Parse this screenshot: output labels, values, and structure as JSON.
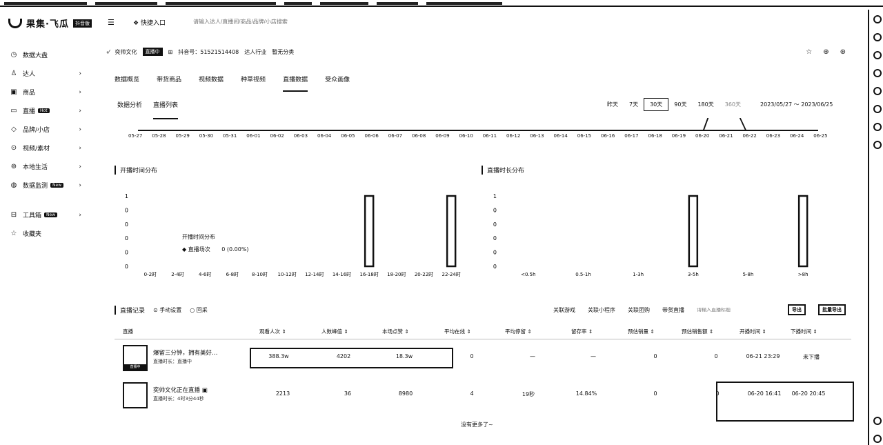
{
  "brand": {
    "name": "果集·飞瓜",
    "badge": "抖音版"
  },
  "header": {
    "quick_entry": "快捷入口",
    "search_placeholder": "请输入达人/直播间/商品/品牌/小店搜索"
  },
  "sidebar": {
    "items": [
      {
        "icon": "dashboard-icon",
        "label": "数据大盘"
      },
      {
        "icon": "user-icon",
        "label": "达人"
      },
      {
        "icon": "product-icon",
        "label": "商品"
      },
      {
        "icon": "tv-icon",
        "label": "直播",
        "tag": "Hot"
      },
      {
        "icon": "tag-icon",
        "label": "品牌/小店"
      },
      {
        "icon": "play-icon",
        "label": "视频/素材"
      },
      {
        "icon": "location-icon",
        "label": "本地生活"
      },
      {
        "icon": "monitor-icon",
        "label": "数据监测",
        "tag": "New"
      },
      {
        "icon": "toolbox-icon",
        "label": "工具箱",
        "tag": "New"
      },
      {
        "icon": "star-icon",
        "label": "收藏夹"
      }
    ]
  },
  "profile": {
    "name": "奕帅文化",
    "live_status": "直播中",
    "douyin_id": "抖音号：51521514408",
    "industry": "达人行业",
    "category": "暂无分类"
  },
  "tabs": [
    "数据概览",
    "带货商品",
    "视频数据",
    "种草视频",
    "直播数据",
    "受众画像"
  ],
  "active_tab": 4,
  "subtabs": [
    "数据分析",
    "直播列表"
  ],
  "active_subtab": 1,
  "date_ranges": [
    "昨天",
    "7天",
    "30天",
    "90天",
    "180天",
    "360天"
  ],
  "selected_range": 2,
  "date_span": "2023/05/27  ～ 2023/06/25",
  "timeline_labels": [
    "05-27",
    "05-28",
    "05-29",
    "05-30",
    "05-31",
    "06-01",
    "06-02",
    "06-03",
    "06-04",
    "06-05",
    "06-06",
    "06-07",
    "06-08",
    "06-09",
    "06-10",
    "06-11",
    "06-12",
    "06-13",
    "06-14",
    "06-15",
    "06-16",
    "06-17",
    "06-18",
    "06-19",
    "06-20",
    "06-21",
    "06-22",
    "06-23",
    "06-24",
    "06-25"
  ],
  "panels": {
    "start_time_title": "开播时间分布",
    "duration_title": "直播时长分布"
  },
  "tooltip": {
    "title": "开播时间分布",
    "series": "直播场次",
    "value": "0 (0.00%)"
  },
  "chart_data": [
    {
      "type": "bar",
      "categories": [
        "0-2时",
        "2-4时",
        "4-6时",
        "6-8时",
        "8-10时",
        "10-12时",
        "12-14时",
        "14-16时",
        "16-18时",
        "18-20时",
        "20-22时",
        "22-24时"
      ],
      "values": [
        0,
        0,
        0,
        0,
        0,
        0,
        0,
        0,
        1,
        0,
        0,
        1
      ],
      "y_tick_labels": [
        "1",
        "0",
        "0",
        "0",
        "0",
        "0"
      ],
      "ylim": [
        0,
        1
      ]
    },
    {
      "type": "bar",
      "categories": [
        "<0.5h",
        "0.5-1h",
        "1-3h",
        "3-5h",
        "5-8h",
        ">8h"
      ],
      "values": [
        0,
        0,
        0,
        1,
        0,
        1
      ],
      "y_tick_labels": [
        "1",
        "0",
        "0",
        "0",
        "0",
        "0"
      ],
      "ylim": [
        0,
        1
      ]
    }
  ],
  "records": {
    "title": "直播记录",
    "radio_options": [
      "手动设置",
      "回采"
    ],
    "actions": [
      "关联游戏",
      "关联小程序",
      "关联团购",
      "带货直播"
    ],
    "search_placeholder": "请输入直播标题",
    "buttons": [
      "导出",
      "批量导出"
    ],
    "columns": [
      "直播",
      "观看人次",
      "人数峰值",
      "本场点赞",
      "平均在线",
      "平均停留",
      "留存率",
      "预估销量",
      "预估销售额",
      "开播时间",
      "下播时间"
    ],
    "rows": [
      {
        "title": "爆留三分钟，拥有美好…",
        "sub": "直播时长：直播中",
        "thumb_tag": "直播中",
        "cells": [
          "388.3w",
          "4202",
          "18.3w",
          "0",
          "—",
          "—",
          "0",
          "0",
          "06-21 23:29",
          "未下播"
        ]
      },
      {
        "title": "奕帅文化正在直播",
        "sub": "直播时长：4时3分44秒",
        "thumb_tag": "",
        "cells": [
          "2213",
          "36",
          "8980",
          "4",
          "19秒",
          "14.84%",
          "0",
          "0",
          "06-20 16:41",
          "06-20 20:45"
        ]
      }
    ],
    "no_more": "没有更多了~"
  }
}
